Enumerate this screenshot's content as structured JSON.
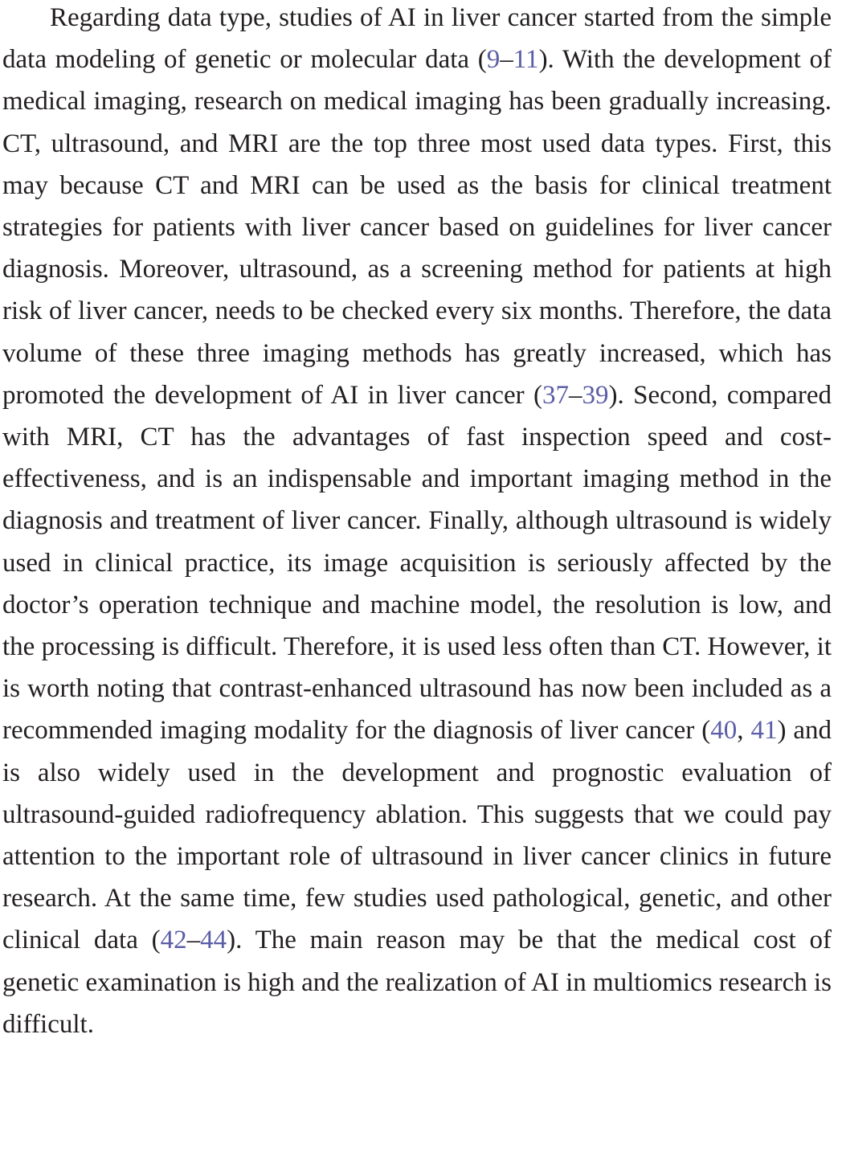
{
  "paragraph": {
    "seg_1": "Regarding data type, studies of AI in liver cancer started from the simple data modeling of genetic or molecular data (",
    "cite_1": "9",
    "dash_1": "–",
    "cite_2": "11",
    "seg_2": "). With the development of medical imaging, research on medical imaging has been gradually increasing. CT, ultrasound, and MRI are the top three most used data types. First, this may because CT and MRI can be used as the basis for clinical treatment strategies for patients with liver cancer based on guidelines for liver cancer diagnosis. Moreover, ultrasound, as a screening method for patients at high risk of liver cancer, needs to be checked every six months. Therefore, the data volume of these three imaging methods has greatly increased, which has promoted the development of AI in liver cancer (",
    "cite_3": "37",
    "dash_2": "–",
    "cite_4": "39",
    "seg_3": "). Second, compared with MRI, CT has the advantages of fast inspection speed and cost-effectiveness, and is an indispensable and important imaging method in the diagnosis and treatment of liver cancer. Finally, although ultrasound is widely used in clinical practice, its image acquisition is seriously affected by the doctor’s operation technique and machine model, the resolution is low, and the processing is difficult. Therefore, it is used less often than CT. However, it is worth noting that contrast-enhanced ultrasound has now been included as a recommended imaging modality for the diagnosis of liver cancer (",
    "cite_5": "40",
    "sep_1": ", ",
    "cite_6": "41",
    "seg_4": ") and is also widely used in the development and prognostic evaluation of ultrasound-guided radiofrequency ablation. This suggests that we could pay attention to the important role of ultrasound in liver cancer clinics in future research. At the same time, few studies used pathological, genetic, and other clinical data (",
    "cite_7": "42",
    "dash_3": "–",
    "cite_8": "44",
    "seg_5": "). The main reason may be that the medical cost of genetic examination is high and the realization of AI in multiomics research is difficult."
  },
  "colors": {
    "text": "#231f20",
    "citation_link": "#5b5ea6"
  }
}
